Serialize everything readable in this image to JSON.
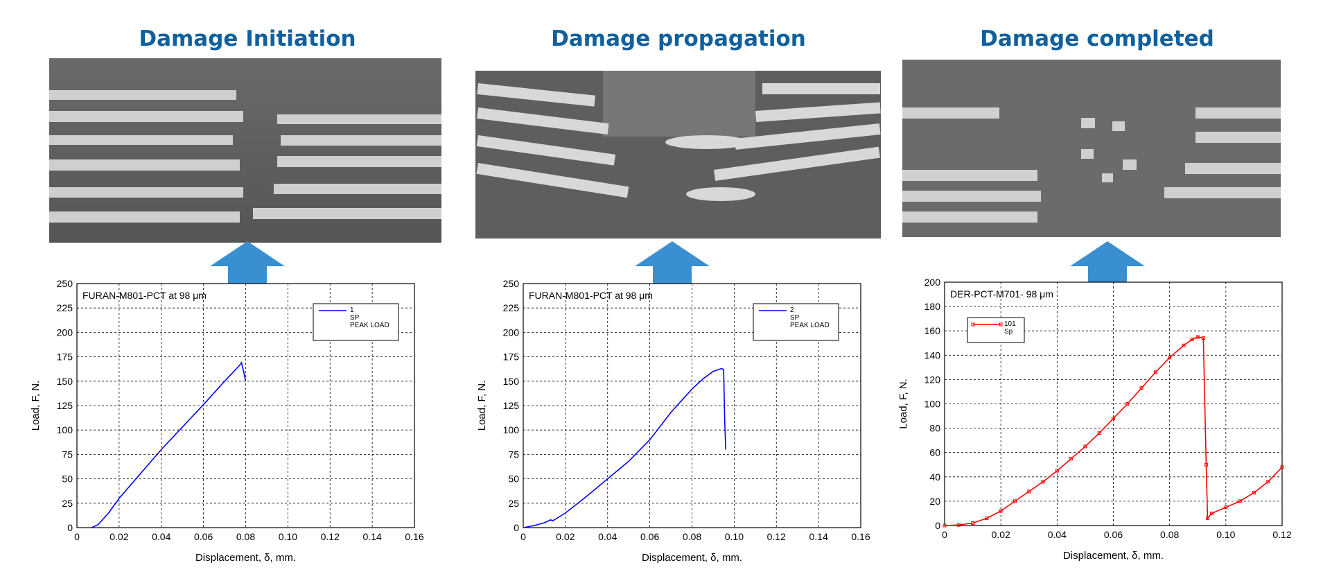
{
  "chart_data": [
    {
      "type": "line",
      "heading": "Damage Initiation",
      "annotation": "FURAN-M801-PCT at 98 μm",
      "xlabel": "Displacement, δ, mm.",
      "ylabel": "Load, F, N.",
      "x": [
        0.007,
        0.01,
        0.015,
        0.02,
        0.03,
        0.04,
        0.05,
        0.06,
        0.07,
        0.077,
        0.078,
        0.079,
        0.08
      ],
      "series": [
        {
          "name": "1",
          "color": "#0000ff",
          "values": [
            0,
            3,
            15,
            30,
            55,
            80,
            103,
            126,
            150,
            166,
            169,
            160,
            150
          ]
        }
      ],
      "legend_lines": [
        "SP",
        "PEAK LOAD"
      ],
      "markers": false,
      "xlim": [
        0,
        0.16
      ],
      "xticks": [
        0,
        0.02,
        0.04,
        0.06,
        0.08,
        {
          "value": 0.1,
          "label": "0.10"
        },
        0.12,
        0.14,
        0.16
      ],
      "ylim": [
        0,
        250
      ],
      "yticks": [
        0,
        25,
        50,
        75,
        100,
        125,
        150,
        175,
        200,
        225,
        250
      ],
      "grid": true
    },
    {
      "type": "line",
      "heading": "Damage propagation",
      "annotation": "FURAN-M801-PCT at 98 μm",
      "xlabel": "Displacement, δ, mm.",
      "ylabel": "Load, F, N.",
      "x": [
        0,
        0.005,
        0.01,
        0.013,
        0.014,
        0.02,
        0.03,
        0.04,
        0.05,
        0.06,
        0.07,
        0.075,
        0.08,
        0.085,
        0.09,
        0.094,
        0.095,
        0.0955,
        0.096
      ],
      "series": [
        {
          "name": "2",
          "color": "#0000ff",
          "values": [
            0,
            2,
            5,
            8,
            7,
            15,
            32,
            50,
            68,
            90,
            118,
            130,
            142,
            152,
            160,
            163,
            162,
            110,
            80
          ]
        }
      ],
      "legend_lines": [
        "SP",
        "PEAK LOAD"
      ],
      "markers": false,
      "xlim": [
        0,
        0.16
      ],
      "xticks": [
        0,
        0.02,
        0.04,
        0.06,
        0.08,
        {
          "value": 0.1,
          "label": "0.10"
        },
        0.12,
        0.14,
        0.16
      ],
      "ylim": [
        0,
        250
      ],
      "yticks": [
        0,
        25,
        50,
        75,
        100,
        125,
        150,
        175,
        200,
        225,
        250
      ],
      "grid": true
    },
    {
      "type": "line",
      "heading": "Damage completed",
      "annotation": "DER-PCT-M701- 98 μm",
      "xlabel": "Displacement, δ, mm.",
      "ylabel": "Load, F, N.",
      "x": [
        0,
        0.005,
        0.01,
        0.015,
        0.02,
        0.025,
        0.03,
        0.035,
        0.04,
        0.045,
        0.05,
        0.055,
        0.06,
        0.065,
        0.07,
        0.075,
        0.08,
        0.085,
        0.088,
        0.09,
        0.092,
        0.093,
        0.0935,
        0.095,
        0.1,
        0.105,
        0.11,
        0.115,
        0.12
      ],
      "series": [
        {
          "name": "101",
          "color": "#ff0000",
          "values": [
            0,
            0.5,
            2,
            6,
            12,
            20,
            28,
            36,
            45,
            55,
            65,
            76,
            88,
            100,
            113,
            126,
            138,
            148,
            153,
            155,
            154,
            50,
            6,
            10,
            15,
            20,
            27,
            36,
            48
          ]
        }
      ],
      "legend_lines": [
        "Sp"
      ],
      "markers": true,
      "xlim": [
        0,
        0.12
      ],
      "xticks": [
        0,
        0.02,
        0.04,
        0.06,
        0.08,
        {
          "value": 0.1,
          "label": "0.10"
        },
        0.12
      ],
      "ylim": [
        0,
        200
      ],
      "yticks": [
        0,
        20,
        40,
        60,
        80,
        100,
        120,
        140,
        160,
        180,
        200
      ],
      "grid": true
    }
  ]
}
